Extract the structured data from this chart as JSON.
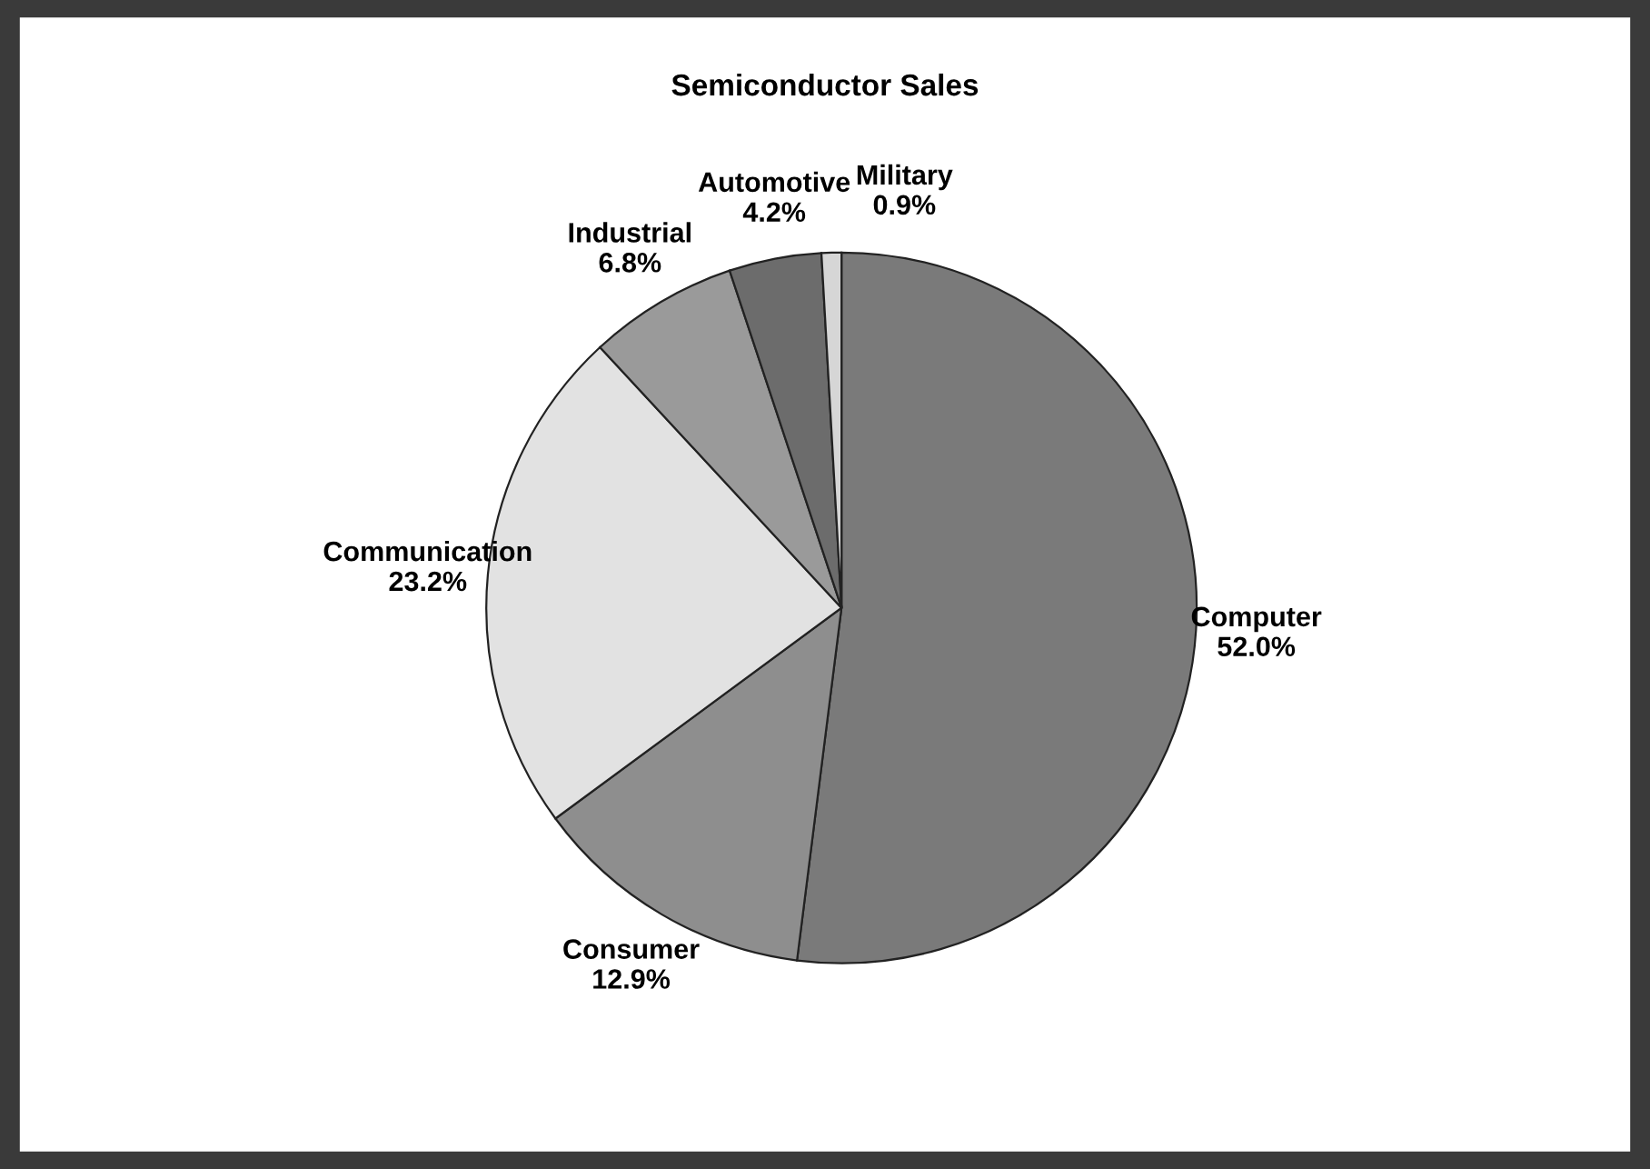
{
  "chart_data": {
    "type": "pie",
    "title": "Semiconductor Sales",
    "categories": [
      "Computer",
      "Consumer",
      "Communication",
      "Industrial",
      "Automotive",
      "Military"
    ],
    "values": [
      52.0,
      12.9,
      23.2,
      6.8,
      4.2,
      0.9
    ],
    "value_labels": [
      "52.0%",
      "12.9%",
      "23.2%",
      "6.8%",
      "4.2%",
      "0.9%"
    ],
    "colors": [
      "#7a7a7a",
      "#8e8e8e",
      "#e2e2e2",
      "#9a9a9a",
      "#6c6c6c",
      "#d6d6d6"
    ],
    "legend": false
  }
}
